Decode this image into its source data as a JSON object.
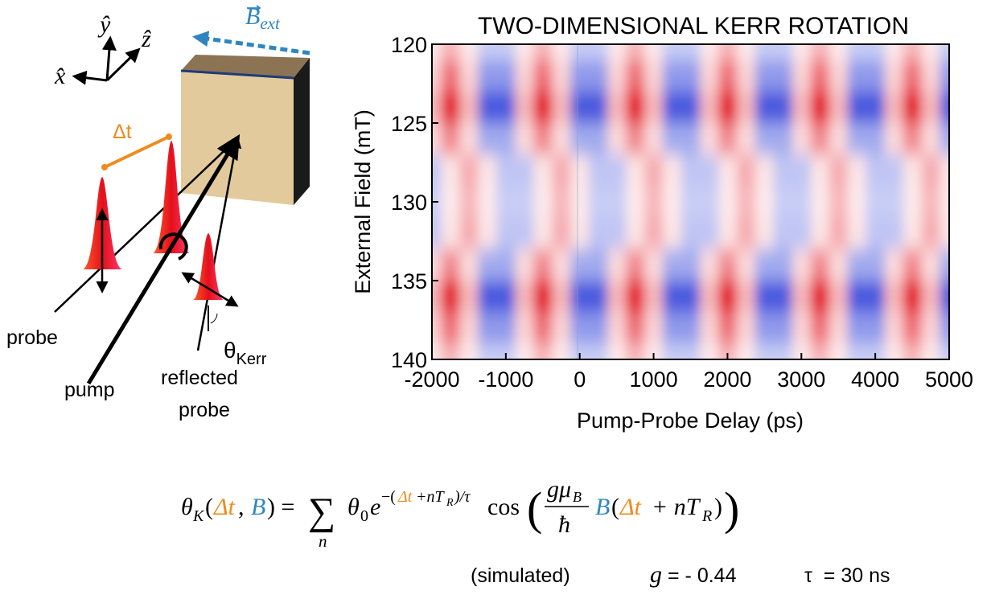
{
  "chart_data": {
    "type": "heatmap",
    "title": "TWO-DIMENSIONAL KERR ROTATION",
    "xlabel": "Pump-Probe Delay (ps)",
    "ylabel": "External Field (mT)",
    "x": [
      -2000,
      -1750,
      -1500,
      -1250,
      -1000,
      -750,
      -500,
      -250,
      0,
      250,
      500,
      750,
      1000,
      1250,
      1500,
      1750,
      2000,
      2250,
      2500,
      2750,
      3000,
      3250,
      3500,
      3750,
      4000,
      4250,
      4500,
      4750,
      5000
    ],
    "y": [
      120,
      122,
      124,
      126,
      128,
      130,
      132,
      134,
      136,
      138,
      140
    ],
    "z": [
      [
        0.09,
        0.3,
        0.09,
        -0.24,
        -0.24,
        0.09,
        0.3,
        0.09,
        -0.24,
        -0.24,
        0.09,
        0.3,
        0.09,
        -0.24,
        -0.24,
        0.09,
        0.3,
        0.09,
        -0.24,
        -0.24,
        0.09,
        0.3,
        0.09,
        -0.24,
        -0.24,
        0.09,
        0.3,
        0.09,
        -0.24
      ],
      [
        0.19,
        0.6,
        0.19,
        -0.49,
        -0.49,
        0.19,
        0.6,
        0.19,
        -0.49,
        -0.49,
        0.19,
        0.6,
        0.19,
        -0.49,
        -0.49,
        0.19,
        0.6,
        0.19,
        -0.49,
        -0.49,
        0.19,
        0.6,
        0.19,
        -0.49,
        -0.49,
        0.19,
        0.6,
        0.19,
        -0.49
      ],
      [
        0.31,
        1,
        0.31,
        -0.81,
        -0.81,
        0.31,
        1,
        0.31,
        -0.81,
        -0.81,
        0.31,
        1,
        0.31,
        -0.81,
        -0.81,
        0.31,
        1,
        0.31,
        -0.81,
        -0.81,
        0.31,
        1,
        0.31,
        -0.81,
        -0.81,
        0.31,
        1,
        0.31,
        -0.81
      ],
      [
        0.16,
        0.5,
        0.16,
        -0.41,
        -0.41,
        0.16,
        0.5,
        0.16,
        -0.41,
        -0.41,
        0.16,
        0.5,
        0.16,
        -0.41,
        -0.41,
        0.16,
        0.5,
        0.16,
        -0.41,
        -0.41,
        0.16,
        0.5,
        0.16,
        -0.41,
        -0.41,
        0.16,
        0.5,
        0.16,
        -0.41
      ],
      [
        -0.28,
        0.11,
        0.35,
        0.11,
        -0.28,
        -0.28,
        0.11,
        0.35,
        0.11,
        -0.28,
        -0.28,
        0.11,
        0.35,
        0.11,
        -0.28,
        -0.28,
        0.11,
        0.35,
        0.11,
        -0.28,
        -0.28,
        0.11,
        0.35,
        0.11,
        -0.28,
        -0.28,
        0.11,
        0.35,
        0.11
      ],
      [
        -0.24,
        0.09,
        0.3,
        0.09,
        -0.24,
        -0.24,
        0.09,
        0.3,
        0.09,
        -0.24,
        -0.24,
        0.09,
        0.3,
        0.09,
        -0.24,
        -0.24,
        0.09,
        0.3,
        0.09,
        -0.24,
        -0.24,
        0.09,
        0.3,
        0.09,
        -0.24,
        -0.24,
        0.09,
        0.3,
        0.09
      ],
      [
        -0.28,
        0.11,
        0.35,
        0.11,
        -0.28,
        -0.28,
        0.11,
        0.35,
        0.11,
        -0.28,
        -0.28,
        0.11,
        0.35,
        0.11,
        -0.28,
        -0.28,
        0.11,
        0.35,
        0.11,
        -0.28,
        -0.28,
        0.11,
        0.35,
        0.11,
        -0.28,
        -0.28,
        0.11,
        0.35,
        0.11
      ],
      [
        0.16,
        0.5,
        0.16,
        -0.41,
        -0.41,
        0.16,
        0.5,
        0.16,
        -0.41,
        -0.41,
        0.16,
        0.5,
        0.16,
        -0.41,
        -0.41,
        0.16,
        0.5,
        0.16,
        -0.41,
        -0.41,
        0.16,
        0.5,
        0.16,
        -0.41,
        -0.41,
        0.16,
        0.5,
        0.16,
        -0.41
      ],
      [
        0.31,
        1,
        0.31,
        -0.81,
        -0.81,
        0.31,
        1,
        0.31,
        -0.81,
        -0.81,
        0.31,
        1,
        0.31,
        -0.81,
        -0.81,
        0.31,
        1,
        0.31,
        -0.81,
        -0.81,
        0.31,
        1,
        0.31,
        -0.81,
        -0.81,
        0.31,
        1,
        0.31,
        -0.81
      ],
      [
        0.19,
        0.6,
        0.19,
        -0.49,
        -0.49,
        0.19,
        0.6,
        0.19,
        -0.49,
        -0.49,
        0.19,
        0.6,
        0.19,
        -0.49,
        -0.49,
        0.19,
        0.6,
        0.19,
        -0.49,
        -0.49,
        0.19,
        0.6,
        0.19,
        -0.49,
        -0.49,
        0.19,
        0.6,
        0.19,
        -0.49
      ],
      [
        0.09,
        0.3,
        0.09,
        -0.24,
        -0.24,
        0.09,
        0.3,
        0.09,
        -0.24,
        -0.24,
        0.09,
        0.3,
        0.09,
        -0.24,
        -0.24,
        0.09,
        0.3,
        0.09,
        -0.24,
        -0.24,
        0.09,
        0.3,
        0.09,
        -0.24,
        -0.24,
        0.09,
        0.3,
        0.09,
        -0.24
      ]
    ],
    "colors": {
      "positive": "#e3101c",
      "negative": "#1a2fd6",
      "zero": "#ffffff"
    },
    "xlim": [
      -2000,
      5000
    ],
    "xticks": [
      -2000,
      -1000,
      0,
      1000,
      2000,
      3000,
      4000,
      5000
    ],
    "ylim": [
      120,
      140
    ],
    "yticks": [
      120,
      125,
      130,
      135,
      140
    ],
    "y_inverted": true
  },
  "diagram": {
    "y_hat": "ŷ",
    "z_hat": "ẑ",
    "x_hat": "x̂",
    "b_ext": {
      "symbol": "B",
      "subscript": "ext"
    },
    "delta_t": "Δt",
    "probe": "probe",
    "pump": "pump",
    "reflected_probe": [
      "reflected",
      "probe"
    ],
    "theta_kerr": {
      "symbol": "θ",
      "subscript": "Kerr"
    }
  },
  "equation": [
    "θ",
    "K",
    "(",
    "Δt",
    ", ",
    "B",
    ") = ",
    "∑",
    "n",
    "θ",
    "0",
    "e",
    "−(",
    "Δt",
    "+nT",
    "R",
    ")/τ",
    "cos",
    "(",
    "gμ",
    "B",
    "ħ",
    "B",
    "(",
    "Δt",
    "+ nT",
    "R",
    ")",
    ")"
  ],
  "notes": {
    "simulated": "(simulated)",
    "g_symbol": "g",
    "g_value": "= - 0.44",
    "tau": "τ  = 30 ns"
  }
}
